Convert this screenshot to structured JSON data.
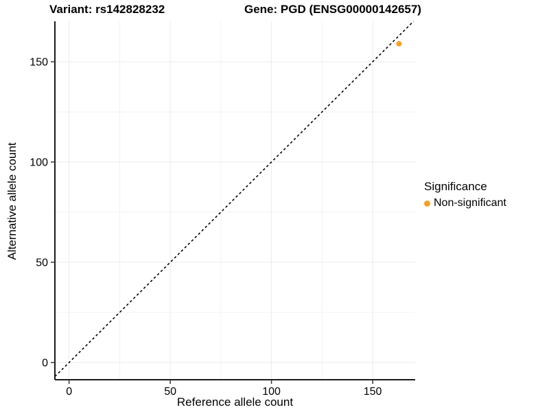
{
  "titles": {
    "left": "Variant: rs142828232",
    "right": "Gene: PGD (ENSG00000142657)"
  },
  "chart_data": {
    "type": "scatter",
    "title": "Variant: rs142828232   Gene: PGD (ENSG00000142657)",
    "xlabel": "Reference allele count",
    "ylabel": "Alternative allele count",
    "xlim": [
      -7,
      171
    ],
    "ylim": [
      -8.6,
      170.2
    ],
    "x_ticks": [
      0,
      50,
      100,
      150
    ],
    "y_ticks": [
      0,
      50,
      100,
      150
    ],
    "x_minor_ticks": [
      25,
      75,
      125
    ],
    "y_minor_ticks": [
      25,
      75,
      125
    ],
    "grid": true,
    "reference_line": {
      "type": "identity",
      "slope": 1,
      "intercept": 0,
      "style": "dashed"
    },
    "series": [
      {
        "name": "Non-significant",
        "points": [
          {
            "x": 163,
            "y": 159
          }
        ]
      }
    ],
    "legend": {
      "title": "Significance",
      "position": "right",
      "entries": [
        {
          "label": "Non-significant",
          "color": "#F6A024"
        }
      ]
    }
  },
  "colors": {
    "point": "#F6A024",
    "grid_major": "#EBEBEB",
    "grid_minor": "#F1F1F1",
    "axis_line": "#1A1A1A",
    "tick_mark": "#333333",
    "reference_line": "#000000",
    "text": "#000000",
    "background": "#FFFFFF"
  }
}
